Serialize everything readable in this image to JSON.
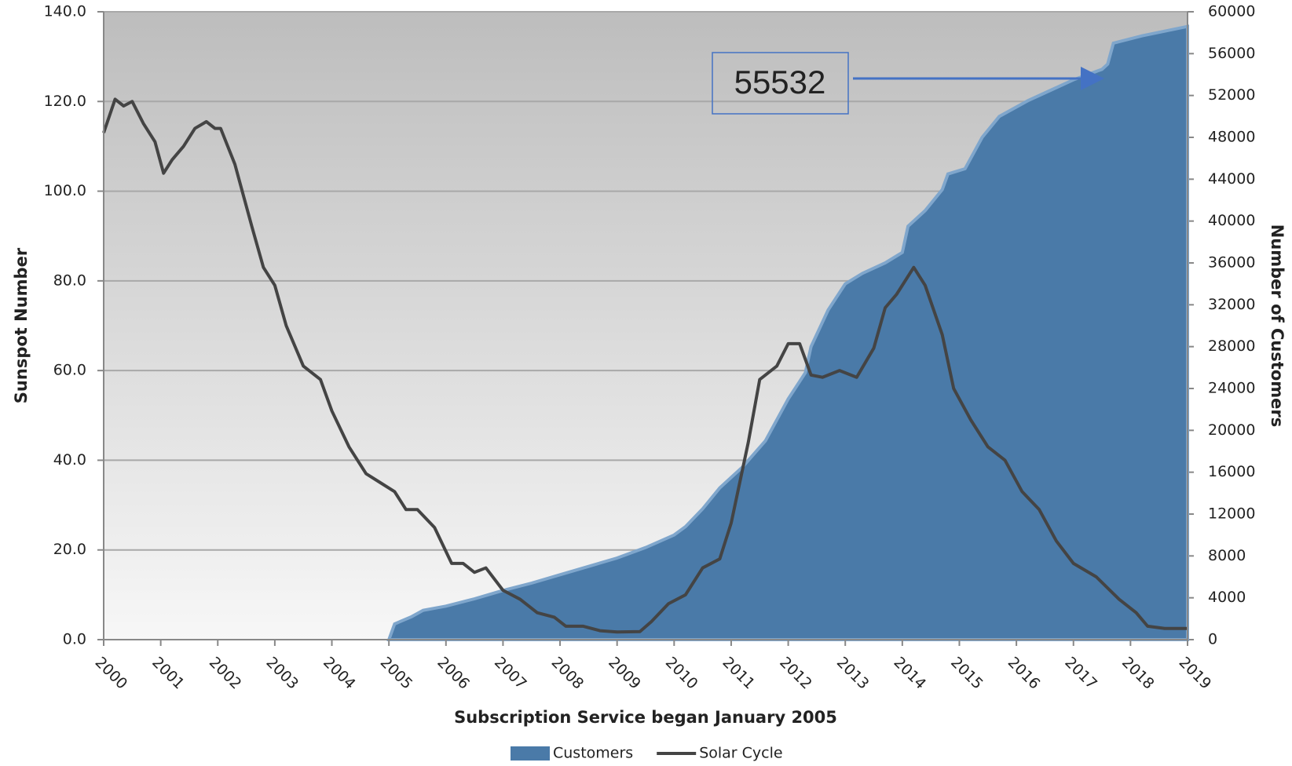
{
  "chart_data": {
    "type": "line",
    "xlabel": "Subscription Service began January 2005",
    "ylabel": "Sunspot Number",
    "y2label": "Number of Customers",
    "xlim": [
      2000,
      2019
    ],
    "xticks": [
      2000,
      2001,
      2002,
      2003,
      2004,
      2005,
      2006,
      2007,
      2008,
      2009,
      2010,
      2011,
      2012,
      2013,
      2014,
      2015,
      2016,
      2017,
      2018,
      2019
    ],
    "ylim": [
      0,
      140
    ],
    "yticks": [
      {
        "value": 0,
        "label": "0.0"
      },
      {
        "value": 20,
        "label": "20.0"
      },
      {
        "value": 40,
        "label": "40.0"
      },
      {
        "value": 60,
        "label": "60.0"
      },
      {
        "value": 80,
        "label": "80.0"
      },
      {
        "value": 100,
        "label": "100.0"
      },
      {
        "value": 120,
        "label": "120.0"
      },
      {
        "value": 140,
        "label": "140.0"
      }
    ],
    "y2lim": [
      0,
      60000
    ],
    "y2ticks": [
      0,
      4000,
      8000,
      12000,
      16000,
      20000,
      24000,
      28000,
      32000,
      36000,
      40000,
      44000,
      48000,
      52000,
      56000,
      60000
    ],
    "grid": true,
    "legend": "bottom",
    "annotation": "55532",
    "series": [
      {
        "name": "Customers",
        "type": "area",
        "axis": "y2",
        "color": "#4a7aa8",
        "x": [
          2005.0,
          2005.1,
          2005.4,
          2005.6,
          2006.0,
          2006.5,
          2007.0,
          2007.5,
          2008.0,
          2008.5,
          2009.0,
          2009.5,
          2010.0,
          2010.2,
          2010.5,
          2010.8,
          2011.2,
          2011.6,
          2012.0,
          2012.3,
          2012.4,
          2012.7,
          2013.0,
          2013.3,
          2013.7,
          2014.0,
          2014.1,
          2014.4,
          2014.7,
          2014.8,
          2015.1,
          2015.4,
          2015.7,
          2016.2,
          2016.6,
          2017.0,
          2017.5,
          2017.6,
          2017.7,
          2018.2,
          2019.0
        ],
        "values": [
          0,
          1500,
          2200,
          2800,
          3200,
          3900,
          4700,
          5400,
          6200,
          7000,
          7800,
          8800,
          10000,
          10800,
          12500,
          14500,
          16500,
          19000,
          23000,
          25500,
          28000,
          31500,
          34000,
          35000,
          36000,
          37000,
          39500,
          41000,
          43000,
          44500,
          45000,
          48000,
          50000,
          51500,
          52500,
          53500,
          54500,
          55000,
          57000,
          57700,
          58600
        ]
      },
      {
        "name": "Solar Cycle",
        "type": "line",
        "axis": "y",
        "color": "#444444",
        "x": [
          2000.0,
          2000.2,
          2000.35,
          2000.5,
          2000.7,
          2000.9,
          2001.05,
          2001.2,
          2001.4,
          2001.6,
          2001.8,
          2001.95,
          2002.05,
          2002.3,
          2002.6,
          2002.8,
          2003.0,
          2003.2,
          2003.5,
          2003.8,
          2004.0,
          2004.3,
          2004.6,
          2004.85,
          2005.1,
          2005.3,
          2005.5,
          2005.8,
          2006.1,
          2006.3,
          2006.5,
          2006.7,
          2007.0,
          2007.3,
          2007.6,
          2007.9,
          2008.1,
          2008.4,
          2008.7,
          2009.0,
          2009.4,
          2009.6,
          2009.9,
          2010.2,
          2010.5,
          2010.8,
          2011.0,
          2011.3,
          2011.5,
          2011.8,
          2012.0,
          2012.2,
          2012.4,
          2012.6,
          2012.9,
          2013.2,
          2013.5,
          2013.7,
          2013.9,
          2014.2,
          2014.4,
          2014.7,
          2014.9,
          2015.2,
          2015.5,
          2015.8,
          2016.1,
          2016.4,
          2016.7,
          2017.0,
          2017.4,
          2017.8,
          2018.1,
          2018.3,
          2018.6,
          2019.0
        ],
        "values": [
          113,
          120.5,
          119,
          120,
          115,
          111,
          104,
          107,
          110,
          114,
          115.5,
          114,
          114,
          106,
          92,
          83,
          79,
          70,
          61,
          58,
          51,
          43,
          37,
          35,
          33,
          29,
          29,
          25,
          17,
          17,
          15,
          16,
          11,
          9,
          6,
          5,
          3,
          3,
          2,
          1.7,
          1.8,
          4,
          8,
          10,
          16,
          18,
          26,
          44,
          58,
          61,
          66,
          66,
          59,
          58.5,
          60,
          58.5,
          65,
          74,
          77,
          83,
          79,
          68,
          56,
          49,
          43,
          40,
          33,
          29,
          22,
          17,
          14,
          9,
          6,
          3,
          2.5,
          2.5
        ]
      }
    ]
  }
}
